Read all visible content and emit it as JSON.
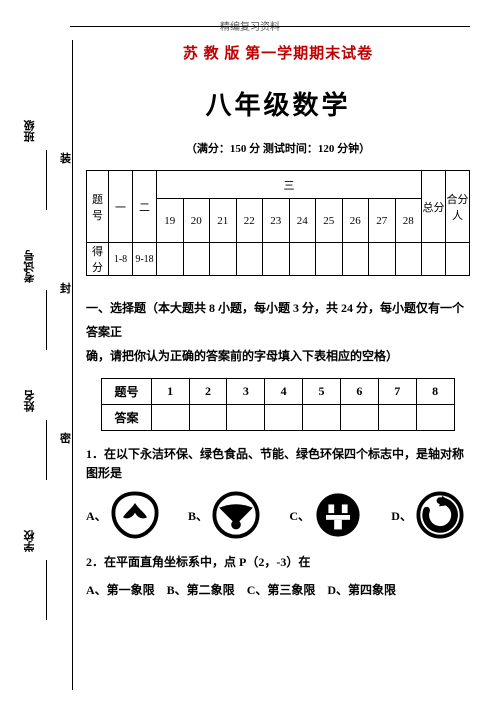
{
  "header_small": "精编复习资料",
  "title_red": "苏 教 版  第一学期期末试卷",
  "title_main": "八年级数学",
  "subtitle": "（满分：150 分  测试时间：120 分钟）",
  "side": {
    "labels": [
      "班级",
      "考试号",
      "姓名",
      "学校"
    ],
    "seal_chars": [
      "装",
      "封",
      "密"
    ]
  },
  "score_table": {
    "row_labels": [
      "题号",
      "得分"
    ],
    "top": [
      "一",
      "二",
      "三",
      "总分",
      "合分人"
    ],
    "nums": [
      "1-8",
      "9-18",
      "19",
      "20",
      "21",
      "22",
      "23",
      "24",
      "25",
      "26",
      "27",
      "28"
    ]
  },
  "section1_text_a": "一、选择题（本大题共 8 小题，每小题 3 分，共 24 分，每小题仅有一个答案正",
  "section1_text_b": "确，请把你认为正确的答案前的字母填入下表相应的空格）",
  "answer_table": {
    "row1": [
      "题号",
      "1",
      "2",
      "3",
      "4",
      "5",
      "6",
      "7",
      "8"
    ],
    "row2_label": "答案"
  },
  "q1": "1．在以下永洁环保、绿色食品、节能、绿色环保四个标志中，是轴对称图形是",
  "q1_opts": [
    "A、",
    "B、",
    "C、",
    "D、"
  ],
  "q2": "2．在平面直角坐标系中，点 P（2，-3）在",
  "q2_opts": [
    "A、第一象限",
    "B、第二象限",
    "C、第三象限",
    "D、第四象限"
  ],
  "colors": {
    "red": "#c00000",
    "text": "#000000"
  }
}
